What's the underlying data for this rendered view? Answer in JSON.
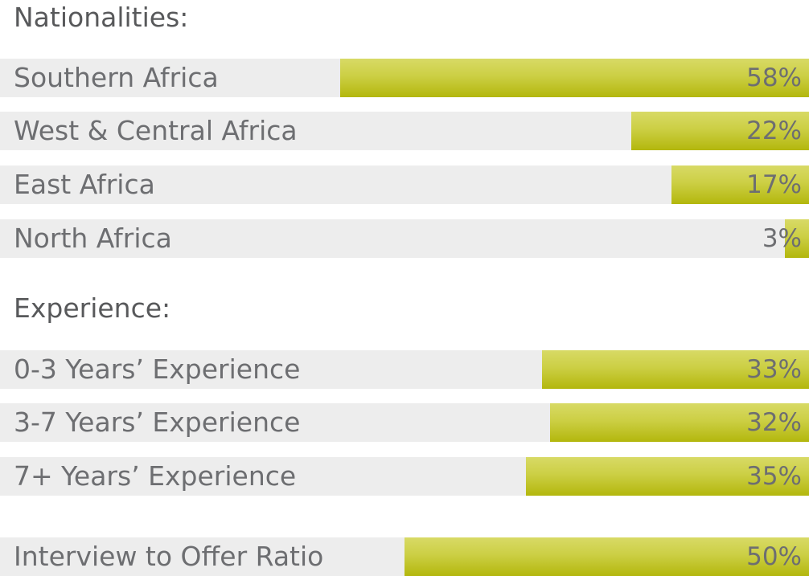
{
  "chart_data": [
    {
      "type": "bar",
      "orientation": "horizontal",
      "title": "Nationalities:",
      "categories": [
        "Southern Africa",
        "West & Central Africa",
        "East Africa",
        "North Africa"
      ],
      "values": [
        58,
        22,
        17,
        3
      ],
      "value_labels": [
        "58%",
        "22%",
        "17%",
        "3%"
      ],
      "unit": "%",
      "xlim": [
        0,
        100
      ],
      "grid": false
    },
    {
      "type": "bar",
      "orientation": "horizontal",
      "title": "Experience:",
      "categories": [
        "0-3 Years’ Experience",
        "3-7 Years’ Experience",
        "7+  Years’ Experience"
      ],
      "values": [
        33,
        32,
        35
      ],
      "value_labels": [
        "33%",
        "32%",
        "35%"
      ],
      "unit": "%",
      "xlim": [
        0,
        100
      ],
      "grid": false
    },
    {
      "type": "bar",
      "orientation": "horizontal",
      "title": "",
      "categories": [
        "Interview to Offer Ratio"
      ],
      "values": [
        50
      ],
      "value_labels": [
        "50%"
      ],
      "unit": "%",
      "xlim": [
        0,
        100
      ],
      "grid": false
    }
  ],
  "colors": {
    "track": "#ededed",
    "fill": "#c6c935",
    "text": "#6d6e71"
  }
}
